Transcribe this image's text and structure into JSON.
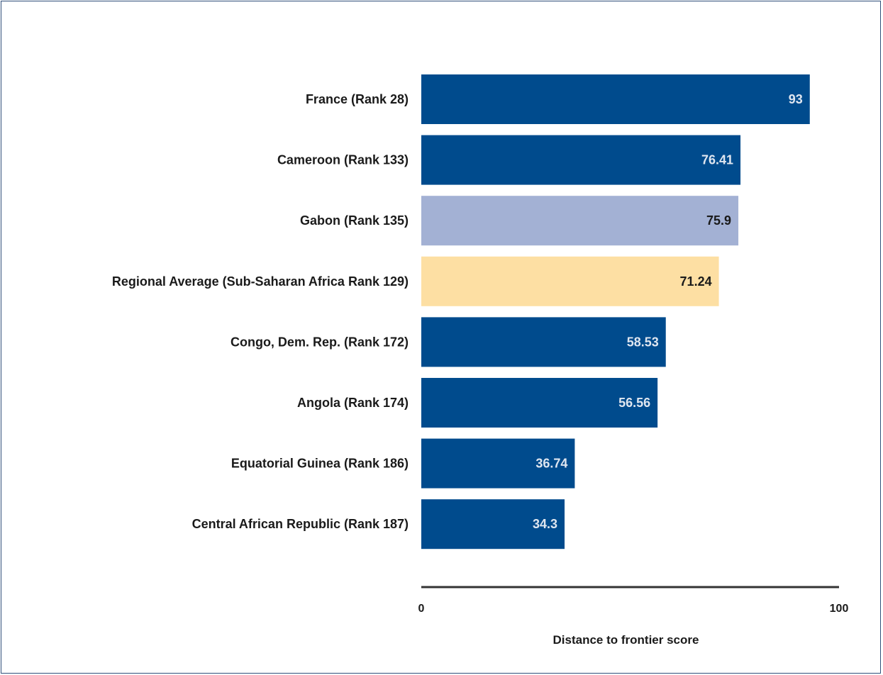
{
  "chart_data": {
    "type": "bar",
    "orientation": "horizontal",
    "categories": [
      "France (Rank 28)",
      "Cameroon (Rank 133)",
      "Gabon (Rank 135)",
      "Regional Average (Sub-Saharan Africa Rank 129)",
      "Congo, Dem. Rep. (Rank 172)",
      "Angola (Rank 174)",
      "Equatorial Guinea (Rank 186)",
      "Central African Republic (Rank 187)"
    ],
    "values": [
      93,
      76.41,
      75.9,
      71.24,
      58.53,
      56.56,
      36.74,
      34.3
    ],
    "value_labels": [
      "93",
      "76.41",
      "75.9",
      "71.24",
      "58.53",
      "56.56",
      "36.74",
      "34.3"
    ],
    "colors": [
      "#004b8d",
      "#004b8d",
      "#a3b1d4",
      "#fddfa3",
      "#004b8d",
      "#004b8d",
      "#004b8d",
      "#004b8d"
    ],
    "label_colors": [
      "#dfe6f0",
      "#dfe6f0",
      "#1a1a1a",
      "#1a1a1a",
      "#dfe6f0",
      "#dfe6f0",
      "#dfe6f0",
      "#dfe6f0"
    ],
    "xlim": [
      0,
      100
    ],
    "xticks": [
      "0",
      "100"
    ],
    "xlabel": "Distance to frontier score",
    "ylabel": "",
    "title": "",
    "grid": false,
    "legend": "none"
  }
}
